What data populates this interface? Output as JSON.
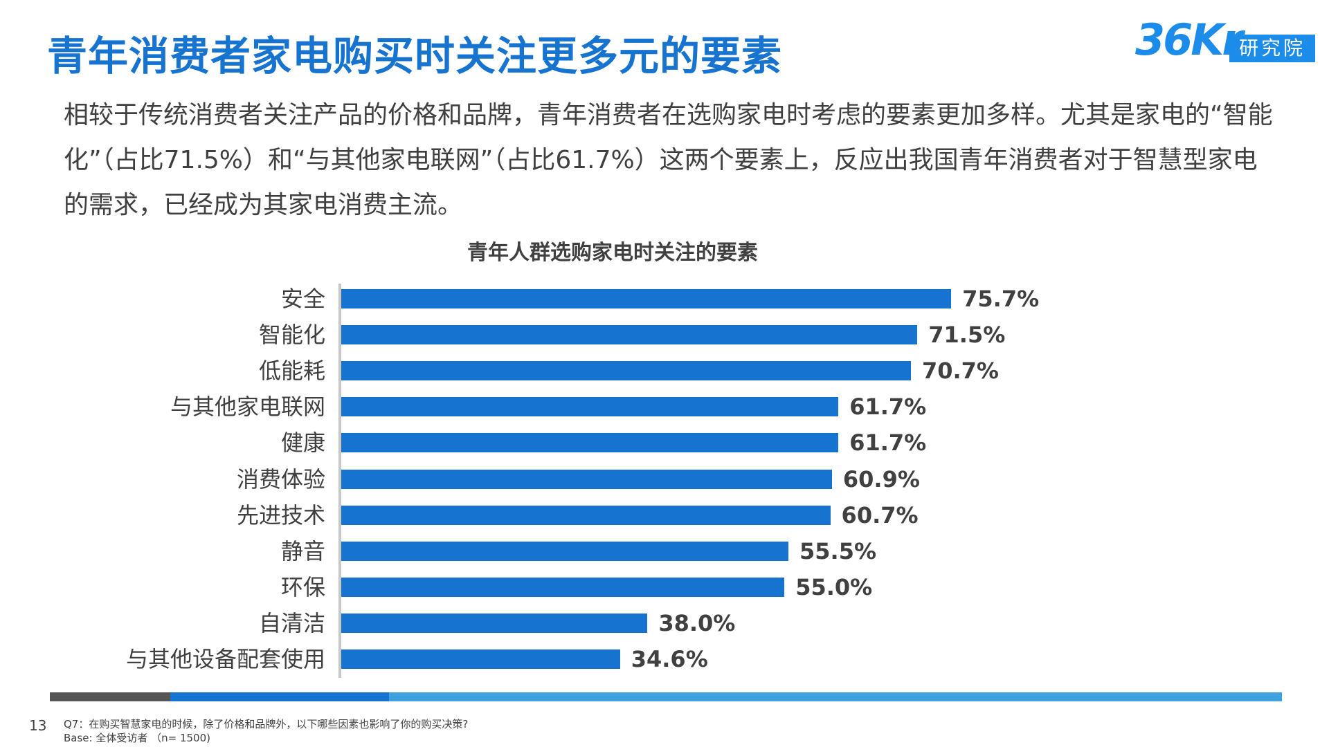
{
  "header": {
    "title": "青年消费者家电购买时关注更多元的要素",
    "logo_text": "36Kr",
    "logo_badge": "研究院"
  },
  "intro": "相较于传统消费者关注产品的价格和品牌，青年消费者在选购家电时考虑的要素更加多样。尤其是家电的“智能化”（占比71.5%）和“与其他家电联网”（占比61.7%）这两个要素上，反应出我国青年消费者对于智慧型家电的需求，已经成为其家电消费主流。",
  "chart_data": {
    "type": "bar",
    "orientation": "horizontal",
    "title": "青年人群选购家电时关注的要素",
    "categories": [
      "安全",
      "智能化",
      "低能耗",
      "与其他家电联网",
      "健康",
      "消费体验",
      "先进技术",
      "静音",
      "环保",
      "自清洁",
      "与其他设备配套使用"
    ],
    "values": [
      75.7,
      71.5,
      70.7,
      61.7,
      61.7,
      60.9,
      60.7,
      55.5,
      55.0,
      38.0,
      34.6
    ],
    "value_labels": [
      "75.7%",
      "71.5%",
      "70.7%",
      "61.7%",
      "61.7%",
      "60.9%",
      "60.7%",
      "55.5%",
      "55.0%",
      "38.0%",
      "34.6%"
    ],
    "xlim": [
      0,
      100
    ],
    "bar_color": "#1673cf"
  },
  "footer": {
    "page_number": "13",
    "question": "Q7：在购买智慧家电的时候，除了价格和品牌外，以下哪些因素也影响了你的购买决策?",
    "base": "Base: 全体受访者 （n= 1500)",
    "bar_colors": [
      "#555555",
      "#1673cf",
      "#3fa0e0"
    ]
  }
}
